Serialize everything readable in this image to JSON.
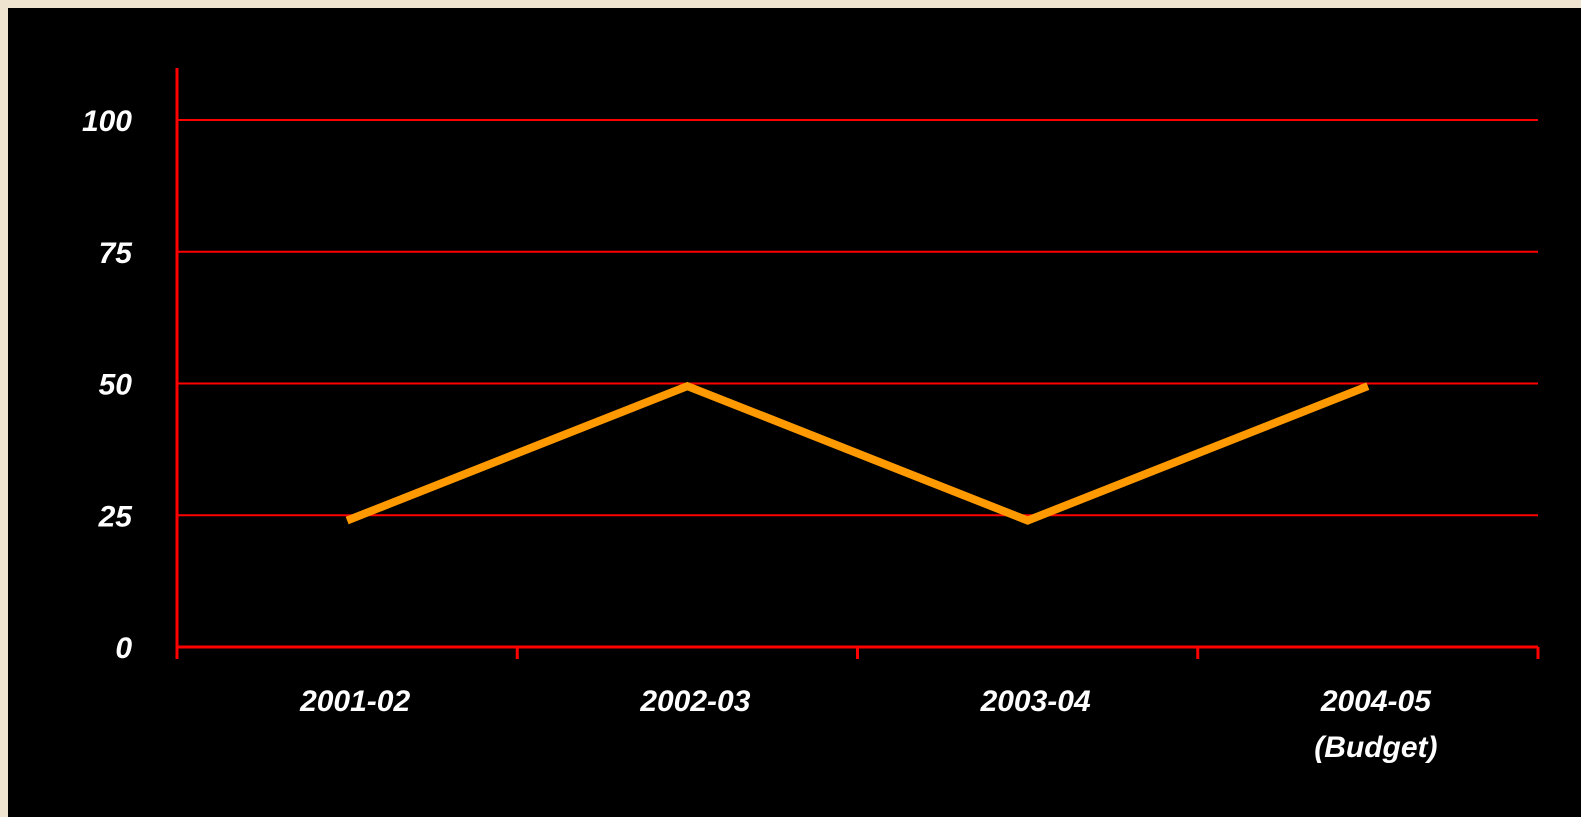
{
  "chart_data": {
    "type": "line",
    "categories": [
      "2001-02",
      "2002-03",
      "2003-04",
      "2004-05 (Budget)"
    ],
    "category_lines": [
      [
        "2001-02"
      ],
      [
        "2002-03"
      ],
      [
        "2003-04"
      ],
      [
        "2004-05",
        "(Budget)"
      ]
    ],
    "series": [
      {
        "values": [
          24,
          49.5,
          24,
          49.5
        ]
      }
    ],
    "title": "",
    "xlabel": "",
    "ylabel": "",
    "ylim": [
      0,
      100
    ],
    "yticks": [
      "0",
      "25",
      "50",
      "75",
      "100"
    ],
    "grid": true,
    "legend": "none",
    "colors": {
      "background": "#000000",
      "frame": "#efe4cf",
      "axis": "#ff0000",
      "grid": "#ff0000",
      "line": "#ff9900",
      "text": "#ffffff"
    }
  }
}
